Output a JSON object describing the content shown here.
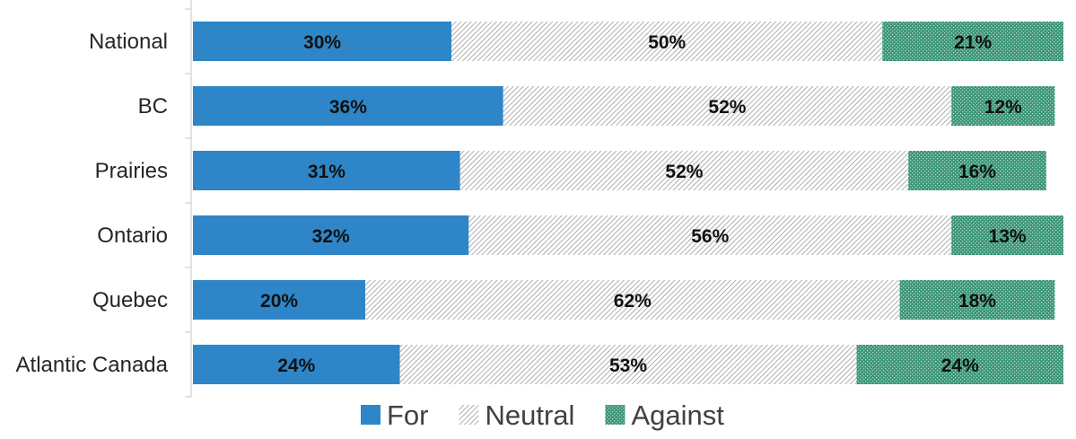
{
  "chart_data": {
    "type": "bar",
    "orientation": "horizontal",
    "stacked": true,
    "categories": [
      "National",
      "BC",
      "Prairies",
      "Ontario",
      "Quebec",
      "Atlantic Canada"
    ],
    "series": [
      {
        "name": "For",
        "values": [
          30,
          36,
          31,
          32,
          20,
          24
        ],
        "labels": [
          "30%",
          "36%",
          "31%",
          "32%",
          "20%",
          "24%"
        ],
        "color": "#2e86c8",
        "fill": "solid"
      },
      {
        "name": "Neutral",
        "values": [
          50,
          52,
          52,
          56,
          62,
          53
        ],
        "labels": [
          "50%",
          "52%",
          "52%",
          "56%",
          "62%",
          "53%"
        ],
        "color": "#9a9a9a",
        "fill": "diagonal-hatch"
      },
      {
        "name": "Against",
        "values": [
          21,
          12,
          16,
          13,
          18,
          24
        ],
        "labels": [
          "21%",
          "12%",
          "16%",
          "13%",
          "18%",
          "24%"
        ],
        "color": "#3a9478",
        "fill": "dotted"
      }
    ],
    "xlim": [
      0,
      101
    ],
    "grid": false,
    "legend_position": "bottom",
    "title": "",
    "xlabel": "",
    "ylabel": ""
  }
}
